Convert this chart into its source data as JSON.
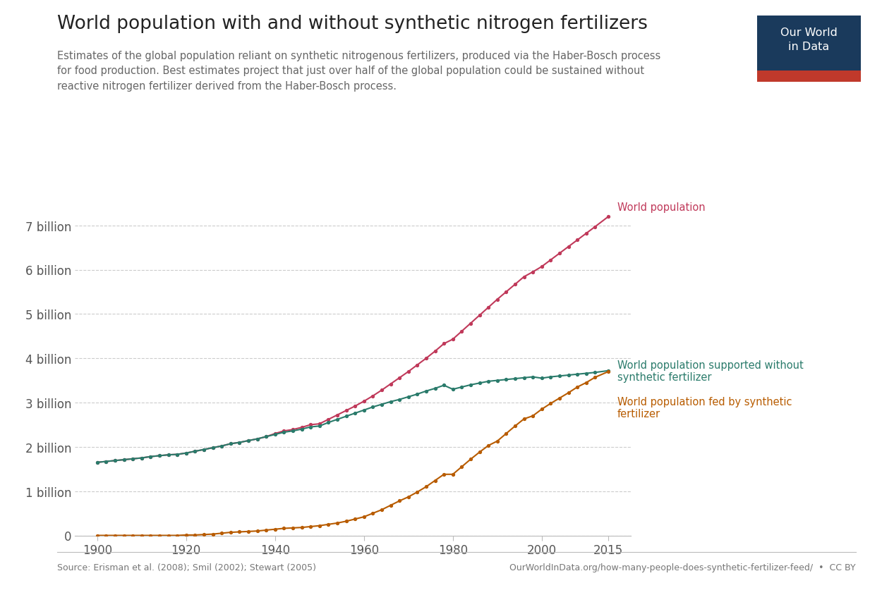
{
  "title": "World population with and without synthetic nitrogen fertilizers",
  "subtitle": "Estimates of the global population reliant on synthetic nitrogenous fertilizers, produced via the Haber-Bosch process\nfor food production. Best estimates project that just over half of the global population could be sustained without\nreactive nitrogen fertilizer derived from the Haber-Bosch process.",
  "source_left": "Source: Erisman et al. (2008); Smil (2002); Stewart (2005)",
  "source_right": "OurWorldInData.org/how-many-people-does-synthetic-fertilizer-feed/  •  CC BY",
  "logo_text": "Our World\nin Data",
  "logo_bg": "#1a3a5c",
  "logo_stripe": "#c0392b",
  "world_pop": {
    "years": [
      1900,
      1902,
      1904,
      1906,
      1908,
      1910,
      1912,
      1914,
      1916,
      1918,
      1920,
      1922,
      1924,
      1926,
      1928,
      1930,
      1932,
      1934,
      1936,
      1938,
      1940,
      1942,
      1944,
      1946,
      1948,
      1950,
      1952,
      1954,
      1956,
      1958,
      1960,
      1962,
      1964,
      1966,
      1968,
      1970,
      1972,
      1974,
      1976,
      1978,
      1980,
      1982,
      1984,
      1986,
      1988,
      1990,
      1992,
      1994,
      1996,
      1998,
      2000,
      2002,
      2004,
      2006,
      2008,
      2010,
      2012,
      2015
    ],
    "values": [
      1.65,
      1.67,
      1.69,
      1.71,
      1.73,
      1.75,
      1.78,
      1.8,
      1.82,
      1.83,
      1.86,
      1.9,
      1.94,
      1.98,
      2.02,
      2.07,
      2.1,
      2.14,
      2.18,
      2.23,
      2.3,
      2.36,
      2.39,
      2.44,
      2.5,
      2.52,
      2.62,
      2.72,
      2.82,
      2.92,
      3.03,
      3.15,
      3.28,
      3.42,
      3.56,
      3.7,
      3.85,
      4.0,
      4.16,
      4.33,
      4.43,
      4.61,
      4.79,
      4.97,
      5.15,
      5.33,
      5.5,
      5.67,
      5.84,
      5.95,
      6.07,
      6.22,
      6.37,
      6.52,
      6.67,
      6.82,
      6.97,
      7.2
    ],
    "color": "#c0395a",
    "label": "World population"
  },
  "pop_without": {
    "years": [
      1900,
      1902,
      1904,
      1906,
      1908,
      1910,
      1912,
      1914,
      1916,
      1918,
      1920,
      1922,
      1924,
      1926,
      1928,
      1930,
      1932,
      1934,
      1936,
      1938,
      1940,
      1942,
      1944,
      1946,
      1948,
      1950,
      1952,
      1954,
      1956,
      1958,
      1960,
      1962,
      1964,
      1966,
      1968,
      1970,
      1972,
      1974,
      1976,
      1978,
      1980,
      1982,
      1984,
      1986,
      1988,
      1990,
      1992,
      1994,
      1996,
      1998,
      2000,
      2002,
      2004,
      2006,
      2008,
      2010,
      2012,
      2015
    ],
    "values": [
      1.65,
      1.67,
      1.69,
      1.71,
      1.73,
      1.75,
      1.78,
      1.8,
      1.82,
      1.83,
      1.86,
      1.9,
      1.94,
      1.98,
      2.02,
      2.07,
      2.1,
      2.14,
      2.18,
      2.23,
      2.28,
      2.33,
      2.36,
      2.4,
      2.45,
      2.47,
      2.55,
      2.62,
      2.69,
      2.76,
      2.83,
      2.9,
      2.96,
      3.02,
      3.07,
      3.13,
      3.19,
      3.26,
      3.32,
      3.39,
      3.3,
      3.35,
      3.4,
      3.44,
      3.48,
      3.5,
      3.52,
      3.54,
      3.56,
      3.58,
      3.55,
      3.58,
      3.6,
      3.62,
      3.64,
      3.66,
      3.68,
      3.72
    ],
    "color": "#2a7b6b",
    "label": "World population supported without\nsynthetic fertilizer"
  },
  "pop_fed": {
    "years": [
      1900,
      1902,
      1904,
      1906,
      1908,
      1910,
      1912,
      1914,
      1916,
      1918,
      1920,
      1922,
      1924,
      1926,
      1928,
      1930,
      1932,
      1934,
      1936,
      1938,
      1940,
      1942,
      1944,
      1946,
      1948,
      1950,
      1952,
      1954,
      1956,
      1958,
      1960,
      1962,
      1964,
      1966,
      1968,
      1970,
      1972,
      1974,
      1976,
      1978,
      1980,
      1982,
      1984,
      1986,
      1988,
      1990,
      1992,
      1994,
      1996,
      1998,
      2000,
      2002,
      2004,
      2006,
      2008,
      2010,
      2012,
      2015
    ],
    "values": [
      0.0,
      0.0,
      0.0,
      0.0,
      0.0,
      0.0,
      0.0,
      0.0,
      0.0,
      0.0,
      0.01,
      0.01,
      0.02,
      0.03,
      0.05,
      0.07,
      0.08,
      0.09,
      0.1,
      0.12,
      0.14,
      0.16,
      0.17,
      0.18,
      0.2,
      0.22,
      0.25,
      0.28,
      0.32,
      0.37,
      0.42,
      0.5,
      0.58,
      0.68,
      0.78,
      0.87,
      0.98,
      1.1,
      1.24,
      1.38,
      1.38,
      1.55,
      1.72,
      1.88,
      2.03,
      2.13,
      2.3,
      2.47,
      2.63,
      2.7,
      2.85,
      2.98,
      3.1,
      3.22,
      3.35,
      3.45,
      3.57,
      3.7
    ],
    "color": "#b85c00",
    "label": "World population fed by synthetic\nfertilizer"
  },
  "bg_color": "#ffffff",
  "grid_color": "#cccccc",
  "xlim": [
    1895,
    2020
  ],
  "ylim": [
    0,
    7.8
  ],
  "yticks": [
    0,
    1,
    2,
    3,
    4,
    5,
    6,
    7
  ],
  "ytick_labels": [
    "0",
    "1 billion",
    "2 billion",
    "3 billion",
    "4 billion",
    "5 billion",
    "6 billion",
    "7 billion"
  ],
  "xticks": [
    1900,
    1920,
    1940,
    1960,
    1980,
    2000,
    2015
  ],
  "xtick_labels": [
    "1900",
    "1920",
    "1940",
    "1960",
    "1980",
    "2000",
    "2015"
  ]
}
